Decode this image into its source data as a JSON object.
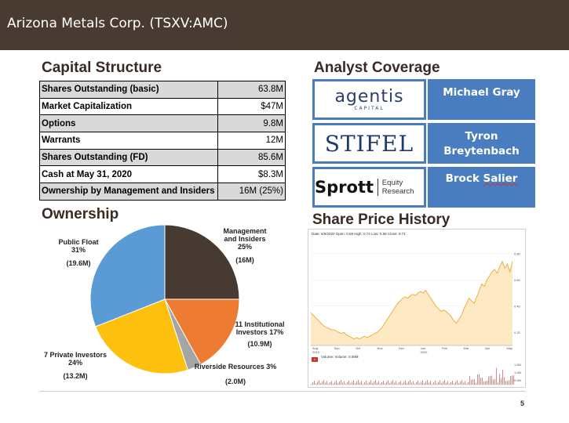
{
  "header": {
    "title": "Arizona Metals Corp. (TSXV:AMC)"
  },
  "capital_structure": {
    "heading": "Capital Structure",
    "rows": [
      {
        "label": "Shares Outstanding (basic)",
        "value": "63.8M"
      },
      {
        "label": "Market Capitalization",
        "value": "$47M"
      },
      {
        "label": "Options",
        "value": "9.8M"
      },
      {
        "label": "Warrants",
        "value": "12M"
      },
      {
        "label": "Shares Outstanding (FD)",
        "value": "85.6M"
      },
      {
        "label": "Cash at May 31, 2020",
        "value": "$8.3M"
      },
      {
        "label": "Ownership by Management and Insiders",
        "value": "16M (25%)"
      }
    ]
  },
  "analyst_coverage": {
    "heading": "Analyst Coverage",
    "firms": [
      {
        "logo_text": "agentis",
        "logo_sub": "CAPITAL",
        "analyst": "Michael Gray"
      },
      {
        "logo_text": "STIFEL",
        "analyst_line1": "Tyron",
        "analyst_line2": "Breytenbach"
      },
      {
        "logo_text": "Sprott",
        "logo_sub": "Equity Research",
        "analyst_first": "Brock",
        "analyst_last": "Salier"
      }
    ]
  },
  "ownership": {
    "heading": "Ownership",
    "slices": [
      {
        "label_lines": [
          "Management",
          "and Insiders",
          "25%"
        ],
        "amount": "(16M)",
        "percent": 25,
        "color": "#473a32"
      },
      {
        "label_lines": [
          "11 Institutional",
          "Investors 17%"
        ],
        "amount": "(10.9M)",
        "percent": 17,
        "color": "#ee7b32"
      },
      {
        "label_lines": [
          "Riverside Resources 3%"
        ],
        "amount": "(2.0M)",
        "percent": 3,
        "color": "#a5a5a5"
      },
      {
        "label_lines": [
          "7 Private Investors",
          "24%"
        ],
        "amount": "(13.2M)",
        "percent": 24,
        "color": "#fdc10d"
      },
      {
        "label_lines": [
          "Public Float",
          "31%"
        ],
        "amount": "(19.6M)",
        "percent": 31,
        "color": "#5a9bd6"
      }
    ]
  },
  "share_price": {
    "heading": "Share Price History",
    "header_text": "Date: 6/5/2020   Open: 0.68   High: 0.74   Low: 0.68   Close: 0.74",
    "volume_text": "Volume:  Volume: 0.08M",
    "x_labels": [
      "Aug",
      "Sep",
      "Oct",
      "Nov",
      "Dec",
      "Jan",
      "Feb",
      "Mar",
      "Apr",
      "May"
    ],
    "year_labels": [
      "2019",
      "2020"
    ],
    "y_labels": [
      "0.80",
      "0.60",
      "0.40",
      "0.20"
    ],
    "vol_y_labels": [
      "1.5M",
      "1.0M",
      "0.5M"
    ],
    "colors": {
      "line": "#f0a830",
      "fill": "#fde9c4",
      "volume_bar": "#d88888"
    },
    "price_series": [
      0.35,
      0.33,
      0.31,
      0.29,
      0.27,
      0.25,
      0.24,
      0.23,
      0.22,
      0.22,
      0.21,
      0.2,
      0.19,
      0.2,
      0.18,
      0.17,
      0.16,
      0.15,
      0.16,
      0.15,
      0.16,
      0.17,
      0.16,
      0.17,
      0.18,
      0.19,
      0.2,
      0.22,
      0.24,
      0.27,
      0.3,
      0.33,
      0.36,
      0.39,
      0.42,
      0.44,
      0.46,
      0.47,
      0.46,
      0.48,
      0.49,
      0.48,
      0.5,
      0.51,
      0.5,
      0.52,
      0.49,
      0.46,
      0.43,
      0.4,
      0.38,
      0.36,
      0.37,
      0.36,
      0.34,
      0.32,
      0.29,
      0.27,
      0.3,
      0.33,
      0.38,
      0.42,
      0.46,
      0.44,
      0.42,
      0.47,
      0.52,
      0.57,
      0.55,
      0.6,
      0.63,
      0.66,
      0.68,
      0.65,
      0.7,
      0.74,
      0.69,
      0.72,
      0.66,
      0.74
    ]
  },
  "footer": {
    "page_number": "5"
  }
}
